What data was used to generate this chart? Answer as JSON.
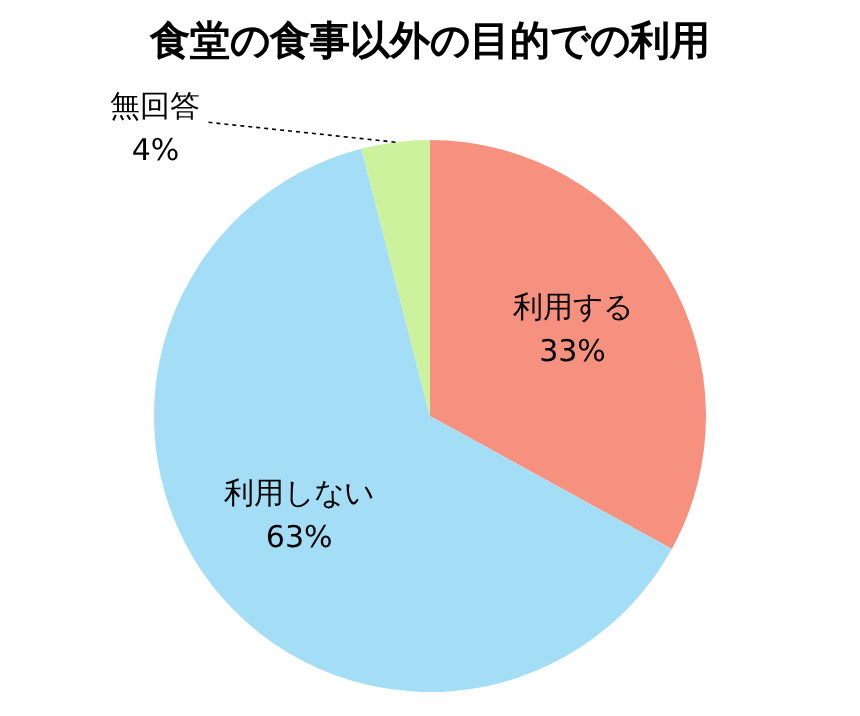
{
  "chart_data": {
    "type": "pie",
    "title": "食堂の食事以外の目的での利用",
    "categories": [
      "利用する",
      "利用しない",
      "無回答"
    ],
    "values": [
      33,
      63,
      4
    ],
    "value_labels": [
      "33%",
      "63%",
      "4%"
    ],
    "colors": [
      "#f7917f",
      "#a4def6",
      "#cdf29d"
    ],
    "legend": false
  }
}
